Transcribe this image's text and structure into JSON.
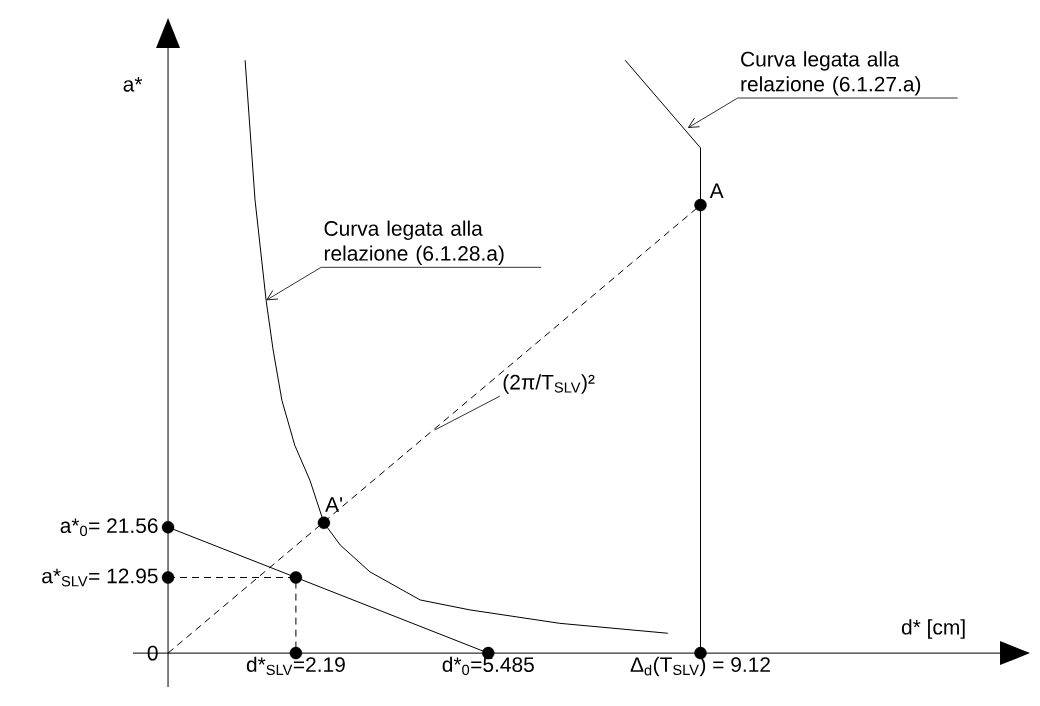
{
  "chart_data": {
    "type": "line",
    "xlabel": "d* [cm]",
    "ylabel": "a*",
    "xlim": [
      -0.6,
      14.25
    ],
    "ylim": [
      -5.8,
      103.6
    ],
    "xticks": [
      {
        "value": 2.19,
        "label": "d*$_{SLV}$=2.19"
      },
      {
        "value": 5.485,
        "label": "d*$_{0}$=5.485"
      },
      {
        "value": 9.12,
        "label": "Δ$_{d}$(T$_{SLV}$) = 9.12"
      }
    ],
    "yticks": [
      0,
      {
        "value": 12.95,
        "label": "a*$_{SLV}$= 12.95"
      },
      {
        "value": 21.56,
        "label": "a*$_{0}$= 21.56"
      }
    ],
    "grid": false,
    "series": [
      {
        "type": "line",
        "line_style": "solid",
        "color": "#000000",
        "x": [
          0,
          5.485
        ],
        "values": [
          21.56,
          0
        ]
      },
      {
        "type": "line",
        "line_style": "dashed",
        "color": "#000000",
        "x": [
          0,
          9.12
        ],
        "values": [
          0,
          76.7
        ]
      },
      {
        "type": "line",
        "line_style": "solid",
        "color": "#000000",
        "x": [
          1.32,
          1.49,
          1.68,
          1.8,
          1.95,
          2.17,
          2.43,
          2.67,
          2.95,
          3.46,
          4.32,
          5.17,
          6.71,
          8.56
        ],
        "values": [
          101.5,
          77.6,
          60.4,
          51.9,
          43.3,
          35.6,
          29.6,
          22.3,
          18.5,
          13.9,
          9.1,
          7.4,
          5.1,
          3.4
        ]
      },
      {
        "type": "line",
        "line_style": "solid",
        "color": "#000000",
        "x": [
          9.12,
          9.12,
          7.83
        ],
        "values": [
          0,
          86.5,
          101.5
        ]
      },
      {
        "type": "line",
        "line_style": "dashed",
        "color": "#000000",
        "x": [
          0,
          2.19,
          2.19
        ],
        "values": [
          12.95,
          12.95,
          0
        ]
      },
      {
        "type": "scatter",
        "marker": "circle",
        "color": "#000000",
        "x": [
          0,
          0,
          2.19,
          2.19,
          5.485,
          9.12,
          9.12,
          2.67
        ],
        "values": [
          21.56,
          12.95,
          12.95,
          0,
          0,
          0,
          76.7,
          22.3
        ]
      }
    ],
    "annotations": [
      {
        "text": "Curva legata alla relazione (6.1.28.a)",
        "x": 1.68,
        "y": 60.4
      },
      {
        "text": "Curva legata alla relazione (6.1.27.a)",
        "x": 8.9,
        "y": 89.9
      },
      {
        "text": "(2π/T$_{SLV}$)²",
        "x": 4.57,
        "y": 38.2
      },
      {
        "text": "A",
        "x": 9.12,
        "y": 76.7
      },
      {
        "text": "A'",
        "x": 2.67,
        "y": 22.3
      }
    ]
  }
}
